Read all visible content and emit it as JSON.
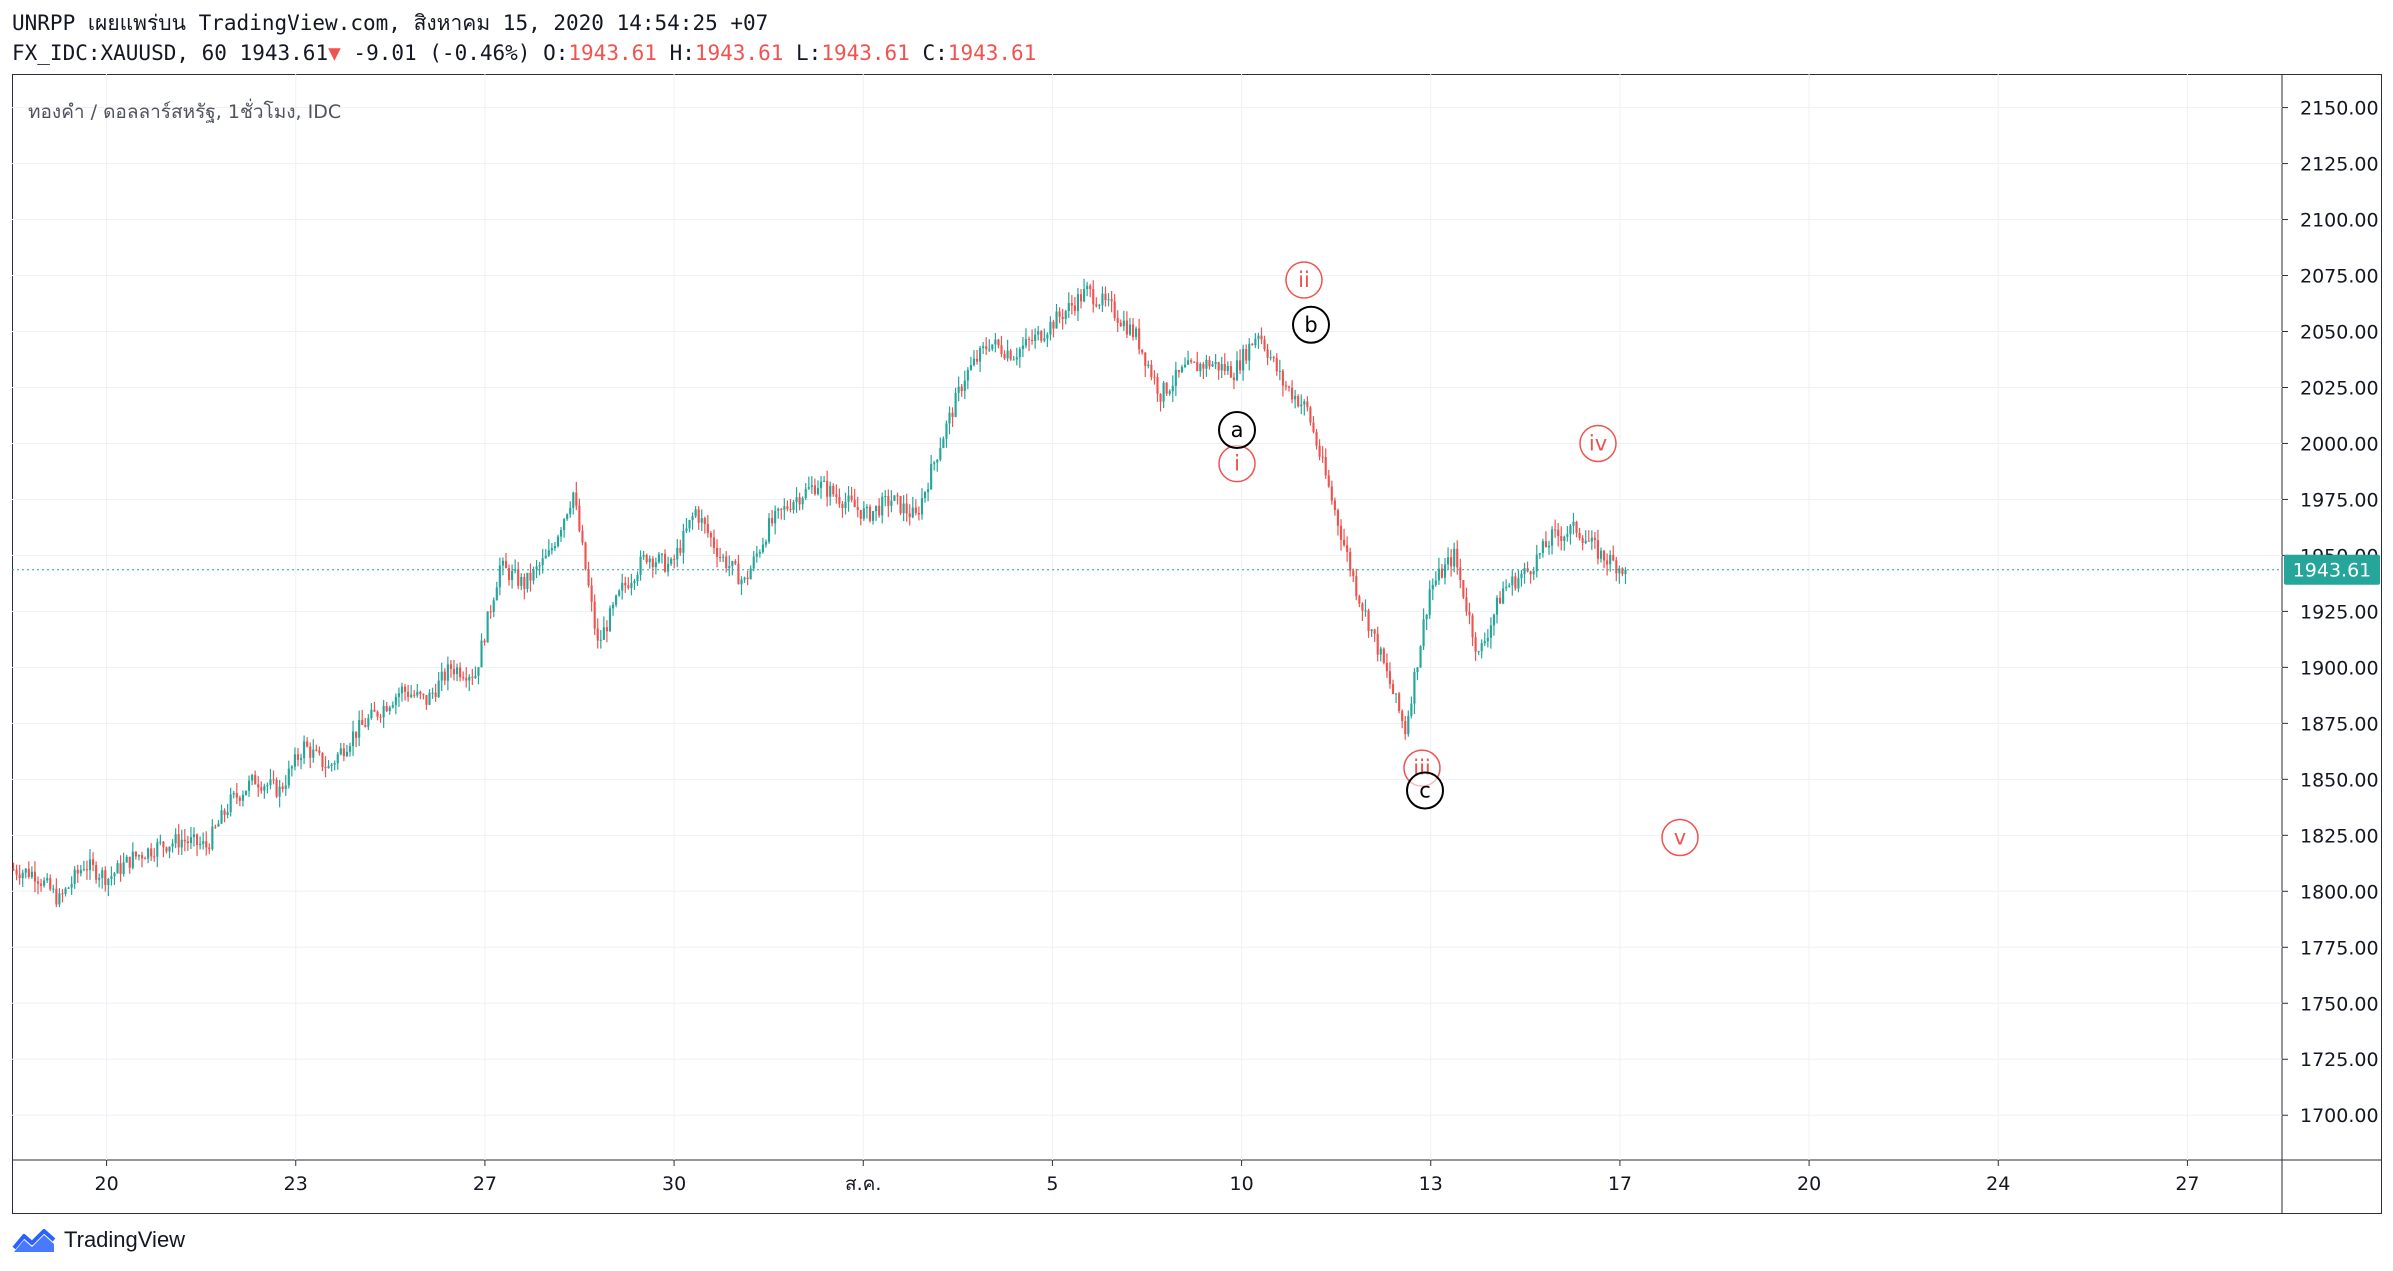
{
  "header": {
    "line1": "UNRPP เผยแพร่บน TradingView.com, สิงหาคม 15, 2020 14:54:25 +07",
    "symbol": "FX_IDC:XAUUSD, 60",
    "last": "1943.61",
    "change_arrow": "▼",
    "change": "-9.01 (-0.46%)",
    "o_label": "O:",
    "o_value": "1943.61",
    "h_label": "H:",
    "h_value": "1943.61",
    "l_label": "L:",
    "l_value": "1943.61",
    "c_label": "C:",
    "c_value": "1943.61"
  },
  "footer": {
    "brand": "TradingView"
  },
  "colors": {
    "up": "#26a69a",
    "down": "#ef5350",
    "grid": "#eef1f6",
    "price_tag": "#26a69a",
    "wave_red": "#ef5350",
    "wave_black": "#000000"
  },
  "chart_data": {
    "type": "candlestick",
    "title": "ทองคำ / ดอลลาร์สหรัฐ, 1ชั่วโมง, IDC",
    "y_ticks": [
      2150,
      2125,
      2100,
      2075,
      2050,
      2025,
      2000,
      1975,
      1950,
      1925,
      1900,
      1875,
      1850,
      1825,
      1800,
      1775,
      1750,
      1725,
      1700
    ],
    "y_tick_labels": [
      "2150.00",
      "2125.00",
      "2100.00",
      "2075.00",
      "2050.00",
      "2025.00",
      "2000.00",
      "1975.00",
      "1950.00",
      "1925.00",
      "1900.00",
      "1875.00",
      "1850.00",
      "1825.00",
      "1800.00",
      "1775.00",
      "1750.00",
      "1725.00",
      "1700.00"
    ],
    "ylim": [
      1680,
      2165
    ],
    "x_labels": [
      "20",
      "23",
      "27",
      "30",
      "ส.ค.",
      "5",
      "10",
      "13",
      "17",
      "20",
      "24",
      "27"
    ],
    "last_price": 1943.61,
    "last_price_label": "1943.61",
    "price_trend": [
      1810,
      1808,
      1796,
      1812,
      1806,
      1815,
      1820,
      1823,
      1820,
      1840,
      1850,
      1845,
      1865,
      1855,
      1870,
      1880,
      1890,
      1885,
      1900,
      1897,
      1945,
      1937,
      1950,
      1978,
      1910,
      1935,
      1950,
      1945,
      1970,
      1950,
      1938,
      1963,
      1975,
      1982,
      1975,
      1968,
      1975,
      1967,
      2000,
      2030,
      2045,
      2040,
      2048,
      2058,
      2068,
      2060,
      2048,
      2022,
      2033,
      2036,
      2032,
      2050,
      2027,
      2015,
      1975,
      1935,
      1905,
      1872,
      1935,
      1950,
      1905,
      1935,
      1943,
      1958,
      1962,
      1950,
      1943.61
    ],
    "wave_labels": [
      {
        "text": "i",
        "value": 1991,
        "color": "red"
      },
      {
        "text": "ii",
        "value": 2073,
        "color": "red"
      },
      {
        "text": "iii",
        "value": 1855,
        "color": "red"
      },
      {
        "text": "iv",
        "value": 2000,
        "color": "red"
      },
      {
        "text": "v",
        "value": 1824,
        "color": "red"
      },
      {
        "text": "a",
        "value": 2006,
        "color": "black"
      },
      {
        "text": "b",
        "value": 2053,
        "color": "black"
      },
      {
        "text": "c",
        "value": 1845,
        "color": "black"
      }
    ]
  }
}
